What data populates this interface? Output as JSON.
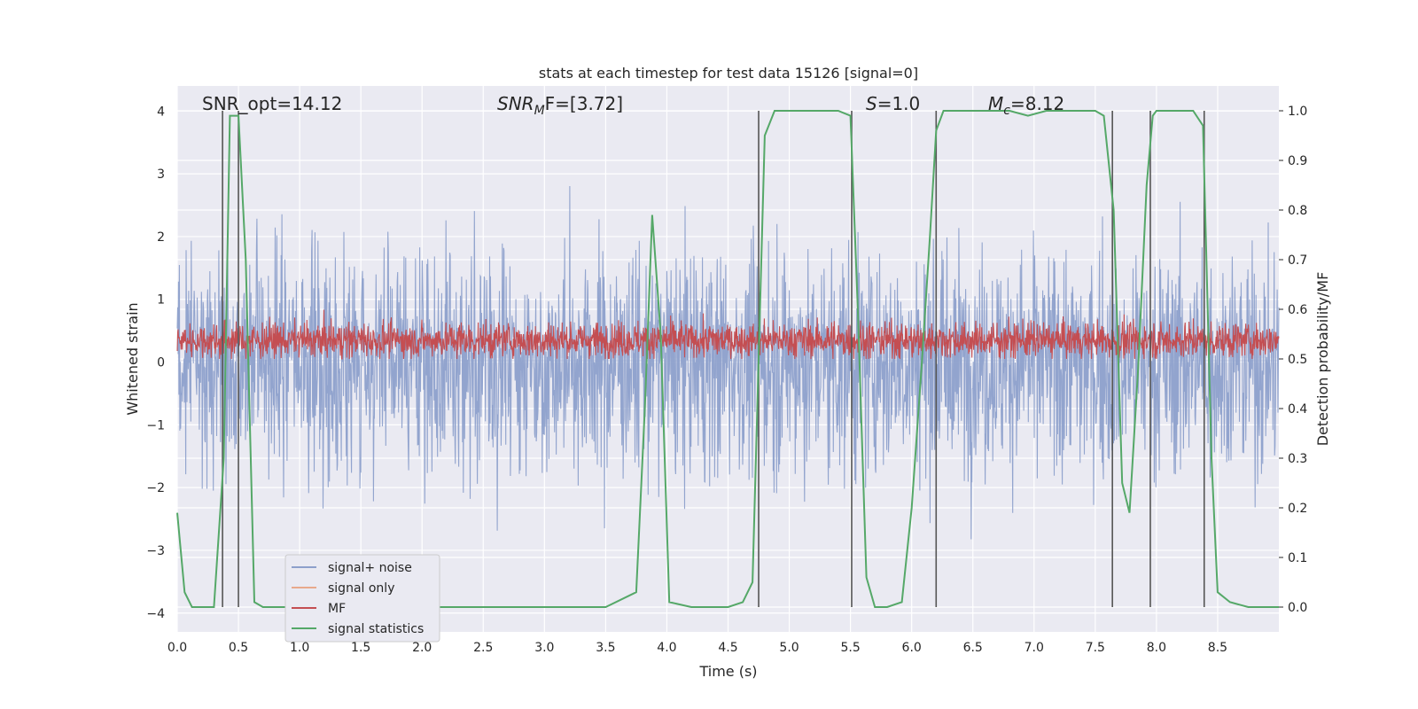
{
  "chart_data": {
    "type": "line",
    "title": "stats at each timestep for test data 15126 [signal=0]",
    "xlabel": "Time (s)",
    "ylabel": "Whitened strain",
    "ylabel_right": "Detection probability/MF",
    "xlim": [
      0.0,
      9.0
    ],
    "ylim": [
      -4.3,
      4.4
    ],
    "ylim_right": [
      -0.05,
      1.05
    ],
    "x_ticks": [
      "0.0",
      "0.5",
      "1.0",
      "1.5",
      "2.0",
      "2.5",
      "3.0",
      "3.5",
      "4.0",
      "4.5",
      "5.0",
      "5.5",
      "6.0",
      "6.5",
      "7.0",
      "7.5",
      "8.0",
      "8.5"
    ],
    "y_ticks": [
      "4",
      "3",
      "2",
      "1",
      "0",
      "−1",
      "−2",
      "−3",
      "−4"
    ],
    "y_ticks_right": [
      "1.0",
      "0.9",
      "0.8",
      "0.7",
      "0.6",
      "0.5",
      "0.4",
      "0.3",
      "0.2",
      "0.1",
      "0.0"
    ],
    "grid": true,
    "legend_position": "lower-left",
    "annotations": {
      "snr_opt": "SNR_opt=14.12",
      "snr_mf_base": "SNR",
      "snr_mf_sub": "M",
      "snr_mf_rest": "F=[3.72]",
      "s_italic": "S",
      "s_rest": "=1.0",
      "mc_base": "M",
      "mc_sub": "c",
      "mc_rest": "=8.12"
    },
    "series": [
      {
        "name": "signal+ noise",
        "color": "#8da0cb",
        "amplitude_range": [
          -3.9,
          3.6
        ],
        "description_level": "dense noise"
      },
      {
        "name": "signal only",
        "color": "#e8a98c",
        "values": []
      },
      {
        "name": "MF",
        "color": "#c44e52",
        "mean": 0.35,
        "range": [
          0.05,
          0.95
        ]
      },
      {
        "name": "signal statistics",
        "color": "#55a868",
        "axis": "right",
        "x": [
          0.0,
          0.06,
          0.12,
          0.2,
          0.3,
          0.38,
          0.43,
          0.5,
          0.56,
          0.63,
          0.7,
          0.85,
          1.5,
          2.0,
          2.5,
          3.0,
          3.5,
          3.75,
          3.82,
          3.88,
          3.95,
          4.02,
          4.2,
          4.5,
          4.62,
          4.7,
          4.75,
          4.8,
          4.88,
          5.0,
          5.2,
          5.4,
          5.5,
          5.56,
          5.63,
          5.7,
          5.8,
          5.92,
          6.0,
          6.08,
          6.15,
          6.2,
          6.26,
          6.32,
          6.5,
          6.8,
          6.95,
          7.1,
          7.3,
          7.5,
          7.57,
          7.65,
          7.72,
          7.78,
          7.85,
          7.92,
          7.97,
          8.0,
          8.1,
          8.3,
          8.38,
          8.45,
          8.5,
          8.6,
          8.75,
          9.0
        ],
        "y": [
          0.19,
          0.03,
          0.0,
          0.0,
          0.0,
          0.3,
          0.99,
          0.99,
          0.7,
          0.01,
          0.0,
          0.0,
          0.0,
          0.0,
          0.0,
          0.0,
          0.0,
          0.03,
          0.4,
          0.79,
          0.55,
          0.01,
          0.0,
          0.0,
          0.01,
          0.05,
          0.5,
          0.95,
          1.0,
          1.0,
          1.0,
          1.0,
          0.99,
          0.6,
          0.06,
          0.0,
          0.0,
          0.01,
          0.2,
          0.48,
          0.75,
          0.96,
          1.0,
          1.0,
          1.0,
          1.0,
          0.99,
          1.0,
          1.0,
          1.0,
          0.99,
          0.8,
          0.25,
          0.19,
          0.48,
          0.85,
          0.99,
          1.0,
          1.0,
          1.0,
          0.97,
          0.3,
          0.03,
          0.01,
          0.0,
          0.0
        ]
      }
    ],
    "vertical_lines": [
      0.37,
      0.5,
      4.75,
      5.51,
      6.2,
      7.64,
      7.95,
      8.39
    ],
    "legend": [
      {
        "label": "signal+ noise",
        "color": "#8da0cb"
      },
      {
        "label": "signal only",
        "color": "#e8a98c"
      },
      {
        "label": "MF",
        "color": "#c44e52"
      },
      {
        "label": "signal statistics",
        "color": "#55a868"
      }
    ]
  }
}
